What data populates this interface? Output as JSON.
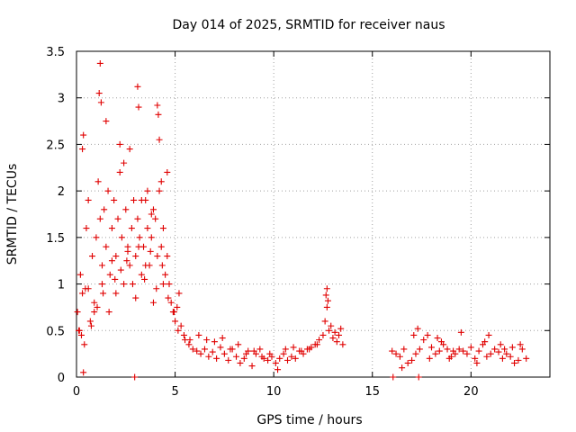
{
  "chart_data": {
    "type": "scatter",
    "title": "Day 014 of 2025, SRMTID for receiver naus",
    "xlabel": "GPS time / hours",
    "ylabel": "SRMTID / TECUs",
    "xlim": [
      0,
      24
    ],
    "ylim": [
      0,
      3.5
    ],
    "xticks": [
      0,
      5,
      10,
      15,
      20
    ],
    "yticks": [
      0,
      0.5,
      1,
      1.5,
      2,
      2.5,
      3,
      3.5
    ],
    "xtick_labels": [
      "0",
      "5",
      "10",
      "15",
      "20"
    ],
    "ytick_labels": [
      "0",
      "0.5",
      "1",
      "1.5",
      "2",
      "2.5",
      "3",
      "3.5"
    ],
    "grid": true,
    "marker": "+",
    "color": "#e00000",
    "series": [
      {
        "name": "SRMTID",
        "x": [
          0.05,
          0.12,
          0.2,
          0.3,
          0.4,
          0.5,
          0.6,
          0.7,
          0.8,
          0.9,
          1.0,
          1.1,
          1.2,
          1.3,
          1.4,
          1.5,
          1.6,
          1.7,
          1.8,
          1.9,
          2.0,
          2.1,
          2.2,
          2.3,
          2.4,
          2.5,
          2.6,
          2.7,
          2.8,
          2.9,
          3.0,
          3.1,
          3.2,
          3.3,
          3.4,
          3.5,
          3.6,
          3.7,
          3.8,
          3.9,
          4.0,
          4.1,
          4.2,
          4.3,
          4.4,
          4.5,
          4.6,
          4.7,
          4.8,
          4.9,
          5.0,
          5.1,
          5.2,
          5.3,
          5.5,
          5.7,
          5.9,
          6.1,
          6.3,
          6.5,
          6.7,
          6.9,
          7.1,
          7.3,
          7.5,
          7.7,
          7.9,
          8.1,
          8.3,
          8.5,
          8.7,
          8.9,
          9.1,
          9.3,
          9.5,
          9.7,
          9.9,
          10.1,
          10.3,
          10.5,
          10.7,
          10.9,
          11.1,
          11.3,
          11.5,
          11.7,
          11.9,
          12.1,
          12.3,
          12.5,
          12.6,
          12.7,
          12.8,
          12.9,
          13.0,
          13.1,
          13.2,
          13.3,
          13.4,
          13.5,
          1.15,
          1.2,
          1.25,
          3.1,
          3.15,
          4.1,
          4.15,
          4.2,
          0.3,
          0.35,
          0.25,
          1.5,
          2.2,
          2.4,
          2.7,
          3.3,
          3.6,
          3.8,
          4.3,
          4.6,
          0.6,
          0.9,
          1.3,
          1.8,
          2.0,
          2.6,
          3.0,
          3.5,
          3.9,
          4.4,
          0.15,
          0.45,
          0.75,
          1.05,
          1.35,
          1.65,
          1.95,
          2.25,
          2.55,
          2.85,
          3.15,
          3.45,
          3.75,
          4.05,
          4.35,
          4.65,
          4.95,
          5.15,
          5.45,
          5.75,
          2.95,
          0.35,
          16.0,
          16.2,
          16.4,
          16.6,
          16.8,
          17.0,
          17.2,
          17.4,
          17.6,
          17.8,
          18.0,
          18.2,
          18.4,
          18.6,
          18.8,
          19.0,
          19.2,
          19.4,
          19.6,
          19.8,
          20.0,
          20.2,
          20.4,
          20.6,
          20.8,
          21.0,
          21.2,
          21.4,
          21.6,
          21.8,
          22.0,
          22.2,
          22.4,
          22.6,
          22.8,
          17.1,
          17.3,
          18.3,
          18.5,
          19.5,
          20.9,
          21.5,
          22.1,
          16.5,
          17.9,
          19.1,
          20.3,
          21.7,
          22.5,
          18.9,
          20.7,
          10.2,
          12.7,
          12.65,
          12.75,
          16.05,
          17.35,
          6.2,
          7.0,
          7.8,
          8.6,
          9.4,
          10.6,
          11.4,
          12.2,
          6.6,
          7.4,
          8.2,
          9.0,
          9.8,
          11.0,
          11.8
        ],
        "y": [
          0.7,
          0.5,
          1.1,
          0.9,
          0.35,
          1.6,
          1.9,
          0.6,
          1.3,
          0.8,
          1.5,
          2.1,
          1.7,
          1.2,
          1.8,
          1.4,
          2.0,
          1.1,
          1.6,
          1.9,
          1.3,
          1.7,
          2.2,
          1.5,
          1.0,
          1.8,
          1.4,
          1.2,
          1.6,
          1.9,
          1.3,
          1.7,
          1.5,
          1.1,
          1.4,
          1.9,
          1.6,
          1.2,
          1.5,
          1.8,
          1.7,
          1.3,
          2.0,
          1.4,
          1.6,
          1.1,
          1.3,
          1.0,
          0.8,
          0.7,
          0.6,
          0.75,
          0.9,
          0.55,
          0.4,
          0.35,
          0.3,
          0.28,
          0.25,
          0.3,
          0.22,
          0.27,
          0.2,
          0.32,
          0.25,
          0.18,
          0.3,
          0.22,
          0.15,
          0.2,
          0.28,
          0.12,
          0.25,
          0.3,
          0.2,
          0.18,
          0.22,
          0.15,
          0.2,
          0.25,
          0.18,
          0.22,
          0.2,
          0.28,
          0.25,
          0.3,
          0.32,
          0.35,
          0.4,
          0.45,
          0.6,
          0.75,
          0.5,
          0.55,
          0.42,
          0.48,
          0.38,
          0.45,
          0.52,
          0.35,
          3.05,
          3.37,
          2.95,
          3.12,
          2.9,
          2.92,
          2.82,
          2.55,
          2.45,
          2.6,
          0.45,
          2.75,
          2.5,
          2.3,
          2.45,
          1.9,
          2.0,
          1.75,
          2.1,
          2.2,
          0.95,
          0.7,
          1.0,
          1.25,
          0.9,
          1.35,
          0.85,
          1.2,
          0.8,
          1.0,
          0.5,
          0.95,
          0.55,
          0.75,
          0.9,
          0.7,
          1.05,
          1.15,
          1.25,
          1.0,
          1.4,
          1.05,
          1.35,
          0.95,
          1.2,
          0.85,
          0.7,
          0.5,
          0.45,
          0.4,
          0.0,
          0.05,
          0.28,
          0.25,
          0.22,
          0.3,
          0.15,
          0.18,
          0.25,
          0.3,
          0.4,
          0.45,
          0.32,
          0.25,
          0.28,
          0.35,
          0.3,
          0.22,
          0.25,
          0.3,
          0.28,
          0.25,
          0.32,
          0.2,
          0.28,
          0.35,
          0.22,
          0.25,
          0.3,
          0.27,
          0.2,
          0.25,
          0.22,
          0.15,
          0.18,
          0.3,
          0.2,
          0.45,
          0.52,
          0.42,
          0.38,
          0.48,
          0.45,
          0.35,
          0.32,
          0.1,
          0.2,
          0.28,
          0.15,
          0.3,
          0.35,
          0.2,
          0.38,
          0.08,
          0.95,
          0.88,
          0.82,
          0.0,
          0.0,
          0.45,
          0.38,
          0.3,
          0.25,
          0.22,
          0.3,
          0.28,
          0.35,
          0.4,
          0.42,
          0.35,
          0.28,
          0.25,
          0.32,
          0.3
        ]
      }
    ]
  }
}
